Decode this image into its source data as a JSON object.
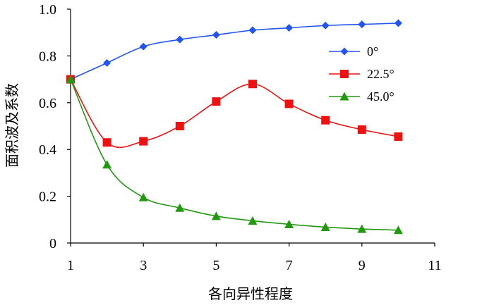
{
  "chart_data": {
    "type": "line",
    "title": "",
    "xlabel": "各向异性程度",
    "ylabel": "面积波及系数",
    "xlim": [
      1,
      11
    ],
    "ylim": [
      0,
      1.0
    ],
    "x_ticks": [
      "1",
      "3",
      "5",
      "7",
      "9",
      "11"
    ],
    "y_ticks": [
      "0",
      "0.2",
      "0.4",
      "0.6",
      "0.8",
      "1.0"
    ],
    "grid": false,
    "legend_position": "right",
    "x": [
      1,
      2,
      3,
      4,
      5,
      6,
      7,
      8,
      9,
      10
    ],
    "series": [
      {
        "name": "0°",
        "color": "#2255ee",
        "marker": "diamond",
        "values": [
          0.7,
          0.77,
          0.84,
          0.87,
          0.89,
          0.91,
          0.92,
          0.93,
          0.935,
          0.94
        ]
      },
      {
        "name": "22.5°",
        "color": "#ee1111",
        "marker": "square",
        "values": [
          0.7,
          0.43,
          0.435,
          0.5,
          0.605,
          0.68,
          0.595,
          0.525,
          0.485,
          0.455
        ]
      },
      {
        "name": "45.0°",
        "color": "#229911",
        "marker": "triangle",
        "values": [
          0.7,
          0.335,
          0.195,
          0.15,
          0.115,
          0.095,
          0.08,
          0.068,
          0.06,
          0.055
        ]
      }
    ]
  }
}
